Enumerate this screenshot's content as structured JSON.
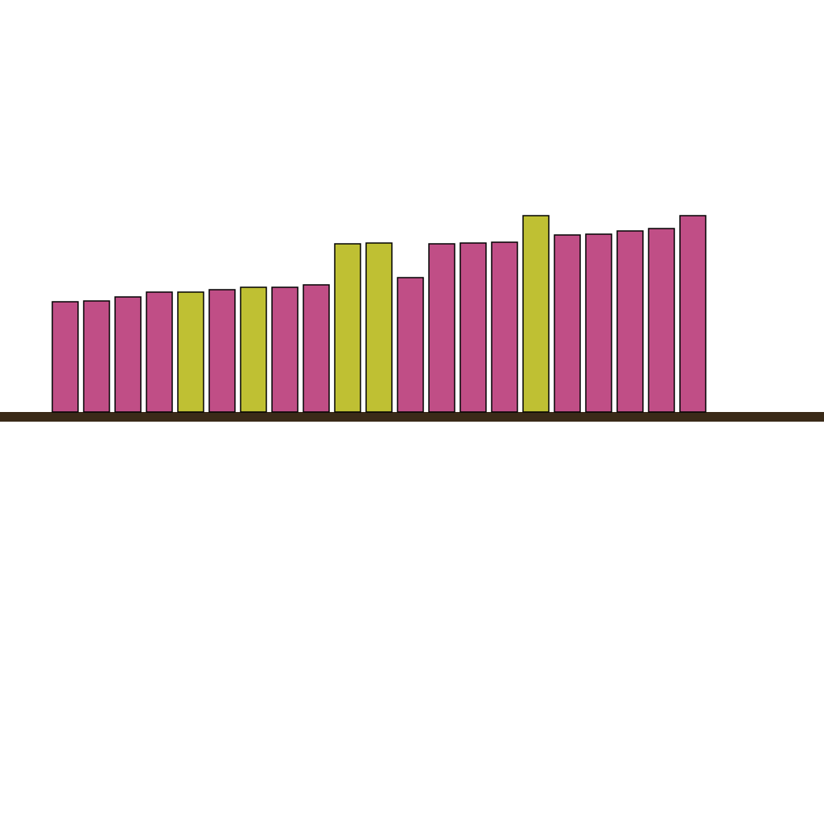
{
  "chart_data": {
    "type": "bar",
    "categories": [
      null,
      null,
      null,
      null,
      null,
      null,
      null,
      null,
      null,
      null,
      null,
      null,
      null,
      null,
      null,
      null,
      null,
      null,
      null,
      null,
      null
    ],
    "values": [
      137,
      138,
      143,
      149,
      149,
      152,
      155,
      155,
      158,
      209,
      210,
      167,
      209,
      210,
      211,
      244,
      220,
      221,
      225,
      228,
      244
    ],
    "colors": [
      "#c04e86",
      "#c04e86",
      "#c04e86",
      "#c04e86",
      "#bfc033",
      "#c04e86",
      "#bfc033",
      "#c04e86",
      "#c04e86",
      "#bfc033",
      "#bfc033",
      "#c04e86",
      "#c04e86",
      "#c04e86",
      "#c04e86",
      "#bfc033",
      "#c04e86",
      "#c04e86",
      "#c04e86",
      "#c04e86",
      "#c04e86"
    ],
    "ylim": [
      0,
      512
    ]
  }
}
